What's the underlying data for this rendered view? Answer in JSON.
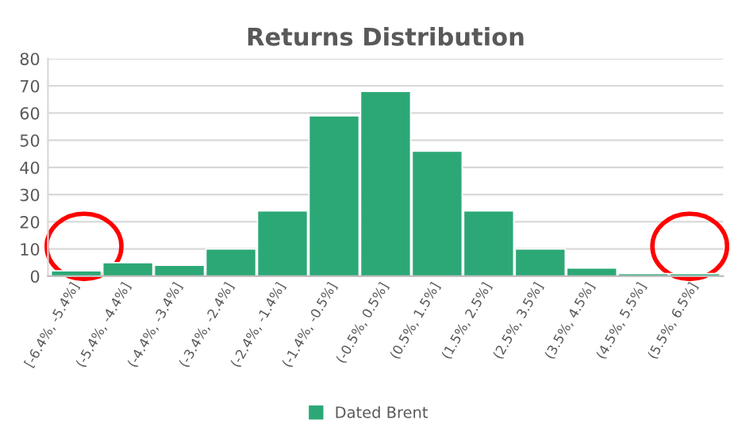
{
  "chart_data": {
    "type": "bar",
    "title": "Returns Distribution",
    "categories": [
      "[-6.4%, -5.4%]",
      "(-5.4%, -4.4%]",
      "(-4.4%, -3.4%]",
      "(-3.4%, -2.4%]",
      "(-2.4%, -1.4%]",
      "(-1.4%, -0.5%]",
      "(-0.5%, 0.5%]",
      "(0.5%, 1.5%]",
      "(1.5%, 2.5%]",
      "(2.5%, 3.5%]",
      "(3.5%, 4.5%]",
      "(4.5%, 5.5%]",
      "(5.5%, 6.5%]"
    ],
    "series": [
      {
        "name": "Dated Brent",
        "color": "#2ca876",
        "values": [
          2,
          5,
          4,
          10,
          24,
          59,
          68,
          46,
          24,
          10,
          3,
          1,
          1
        ]
      }
    ],
    "ylim": [
      0,
      80
    ],
    "yticks": [
      0,
      10,
      20,
      30,
      40,
      50,
      60,
      70,
      80
    ],
    "grid": "y",
    "legend": "bottom"
  }
}
